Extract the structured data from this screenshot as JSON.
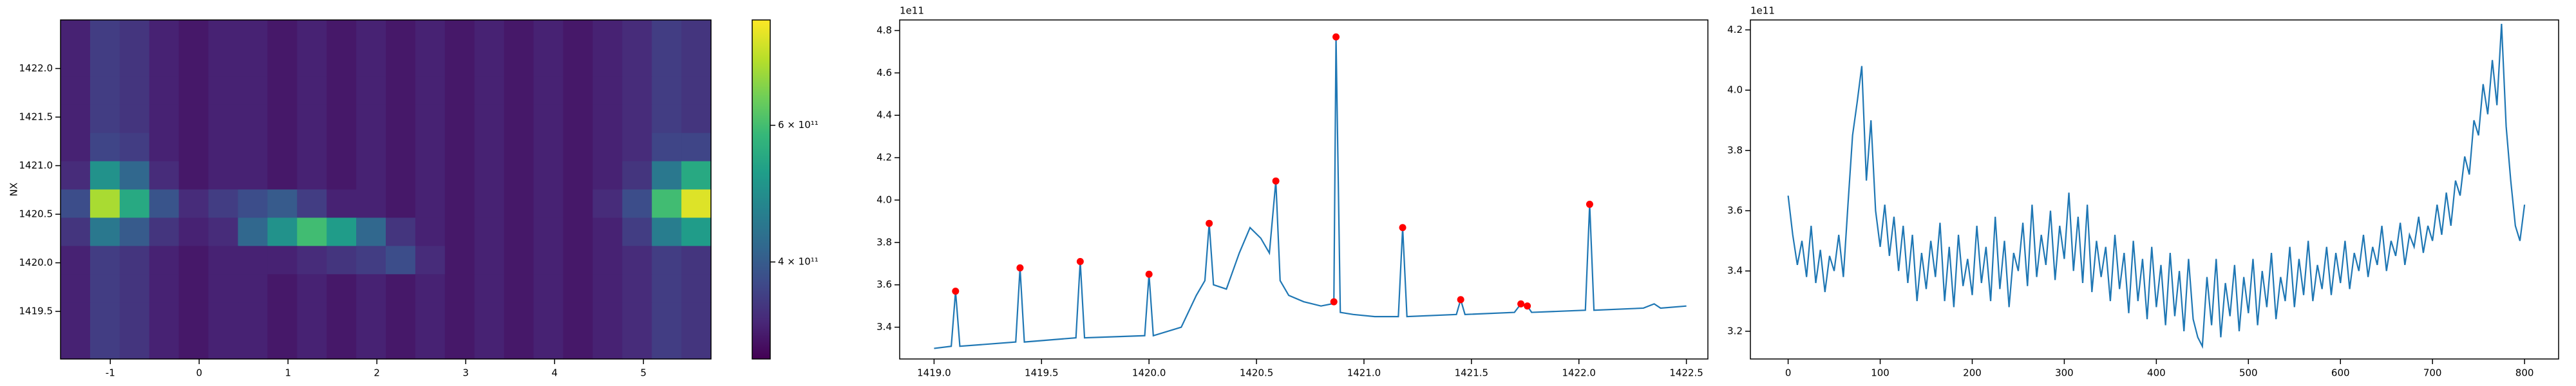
{
  "chart_data": [
    {
      "type": "heatmap",
      "ylabel": "NX",
      "xlim": [
        -1.56,
        5.76
      ],
      "ylim": [
        1419.01,
        1422.5
      ],
      "xticks": [
        -1,
        0,
        1,
        2,
        3,
        4,
        5
      ],
      "yticks": [
        1419.5,
        {
          "value": 1420.0,
          "label": "1420.0"
        },
        1420.5,
        {
          "value": 1421.0,
          "label": "1421.0"
        },
        1421.5,
        {
          "value": 1422.0,
          "label": "1422.0"
        }
      ],
      "z": [
        [
          330000000000.0,
          360000000000.0,
          350000000000.0,
          330000000000.0,
          320000000000.0,
          330000000000.0,
          330000000000.0,
          320000000000.0,
          330000000000.0,
          320000000000.0,
          330000000000.0,
          320000000000.0,
          330000000000.0,
          320000000000.0,
          330000000000.0,
          320000000000.0,
          330000000000.0,
          320000000000.0,
          330000000000.0,
          340000000000.0,
          360000000000.0,
          350000000000.0
        ],
        [
          330000000000.0,
          360000000000.0,
          350000000000.0,
          330000000000.0,
          320000000000.0,
          330000000000.0,
          330000000000.0,
          320000000000.0,
          330000000000.0,
          320000000000.0,
          330000000000.0,
          320000000000.0,
          330000000000.0,
          320000000000.0,
          330000000000.0,
          320000000000.0,
          330000000000.0,
          320000000000.0,
          330000000000.0,
          340000000000.0,
          360000000000.0,
          350000000000.0
        ],
        [
          330000000000.0,
          360000000000.0,
          350000000000.0,
          330000000000.0,
          320000000000.0,
          330000000000.0,
          330000000000.0,
          320000000000.0,
          330000000000.0,
          320000000000.0,
          330000000000.0,
          320000000000.0,
          330000000000.0,
          320000000000.0,
          330000000000.0,
          320000000000.0,
          330000000000.0,
          320000000000.0,
          330000000000.0,
          340000000000.0,
          360000000000.0,
          350000000000.0
        ],
        [
          330000000000.0,
          360000000000.0,
          350000000000.0,
          330000000000.0,
          320000000000.0,
          330000000000.0,
          330000000000.0,
          320000000000.0,
          330000000000.0,
          320000000000.0,
          330000000000.0,
          320000000000.0,
          330000000000.0,
          320000000000.0,
          330000000000.0,
          320000000000.0,
          330000000000.0,
          320000000000.0,
          330000000000.0,
          340000000000.0,
          360000000000.0,
          350000000000.0
        ],
        [
          330000000000.0,
          370000000000.0,
          360000000000.0,
          330000000000.0,
          320000000000.0,
          330000000000.0,
          330000000000.0,
          320000000000.0,
          330000000000.0,
          320000000000.0,
          330000000000.0,
          320000000000.0,
          330000000000.0,
          320000000000.0,
          330000000000.0,
          320000000000.0,
          330000000000.0,
          320000000000.0,
          330000000000.0,
          340000000000.0,
          370000000000.0,
          370000000000.0
        ],
        [
          340000000000.0,
          500000000000.0,
          420000000000.0,
          340000000000.0,
          320000000000.0,
          330000000000.0,
          330000000000.0,
          320000000000.0,
          330000000000.0,
          320000000000.0,
          330000000000.0,
          320000000000.0,
          330000000000.0,
          320000000000.0,
          330000000000.0,
          320000000000.0,
          330000000000.0,
          320000000000.0,
          330000000000.0,
          350000000000.0,
          450000000000.0,
          550000000000.0
        ],
        [
          380000000000.0,
          720000000000.0,
          550000000000.0,
          390000000000.0,
          340000000000.0,
          360000000000.0,
          380000000000.0,
          400000000000.0,
          360000000000.0,
          330000000000.0,
          330000000000.0,
          320000000000.0,
          330000000000.0,
          320000000000.0,
          330000000000.0,
          320000000000.0,
          330000000000.0,
          320000000000.0,
          340000000000.0,
          380000000000.0,
          600000000000.0,
          780000000000.0
        ],
        [
          350000000000.0,
          450000000000.0,
          400000000000.0,
          350000000000.0,
          330000000000.0,
          340000000000.0,
          420000000000.0,
          500000000000.0,
          600000000000.0,
          520000000000.0,
          420000000000.0,
          350000000000.0,
          330000000000.0,
          320000000000.0,
          330000000000.0,
          320000000000.0,
          330000000000.0,
          320000000000.0,
          330000000000.0,
          360000000000.0,
          460000000000.0,
          520000000000.0
        ],
        [
          330000000000.0,
          360000000000.0,
          350000000000.0,
          330000000000.0,
          320000000000.0,
          330000000000.0,
          330000000000.0,
          330000000000.0,
          340000000000.0,
          350000000000.0,
          360000000000.0,
          380000000000.0,
          340000000000.0,
          320000000000.0,
          330000000000.0,
          320000000000.0,
          330000000000.0,
          320000000000.0,
          330000000000.0,
          340000000000.0,
          360000000000.0,
          350000000000.0
        ],
        [
          330000000000.0,
          360000000000.0,
          350000000000.0,
          330000000000.0,
          320000000000.0,
          330000000000.0,
          330000000000.0,
          320000000000.0,
          330000000000.0,
          320000000000.0,
          330000000000.0,
          320000000000.0,
          330000000000.0,
          320000000000.0,
          330000000000.0,
          320000000000.0,
          330000000000.0,
          320000000000.0,
          330000000000.0,
          340000000000.0,
          360000000000.0,
          350000000000.0
        ],
        [
          330000000000.0,
          360000000000.0,
          350000000000.0,
          330000000000.0,
          320000000000.0,
          330000000000.0,
          330000000000.0,
          320000000000.0,
          330000000000.0,
          320000000000.0,
          330000000000.0,
          320000000000.0,
          330000000000.0,
          320000000000.0,
          330000000000.0,
          320000000000.0,
          330000000000.0,
          320000000000.0,
          330000000000.0,
          340000000000.0,
          360000000000.0,
          350000000000.0
        ],
        [
          330000000000.0,
          360000000000.0,
          350000000000.0,
          330000000000.0,
          320000000000.0,
          330000000000.0,
          330000000000.0,
          320000000000.0,
          330000000000.0,
          320000000000.0,
          330000000000.0,
          320000000000.0,
          330000000000.0,
          320000000000.0,
          330000000000.0,
          320000000000.0,
          330000000000.0,
          320000000000.0,
          330000000000.0,
          340000000000.0,
          360000000000.0,
          350000000000.0
        ]
      ],
      "colorbar": {
        "lim": [
          300000000000.0,
          820000000000.0
        ],
        "log": true,
        "ticks": [
          {
            "value": 400000000000,
            "label": "4 × 10¹¹"
          },
          {
            "value": 600000000000,
            "label": "6 × 10¹¹"
          }
        ]
      }
    },
    {
      "type": "line",
      "offset_label": "1e11",
      "color": "#1f77b4",
      "xlim": [
        1418.84,
        1422.6
      ],
      "ylim": [
        325000000000.0,
        485000000000.0
      ],
      "xticks": [
        {
          "value": 1419.0,
          "label": "1419.0"
        },
        1419.5,
        {
          "value": 1420.0,
          "label": "1420.0"
        },
        1420.5,
        {
          "value": 1421.0,
          "label": "1421.0"
        },
        1421.5,
        {
          "value": 1422.0,
          "label": "1422.0"
        },
        1422.5
      ],
      "yticks": [
        {
          "value": 340000000000.0,
          "label": "3.4"
        },
        {
          "value": 360000000000.0,
          "label": "3.6"
        },
        {
          "value": 380000000000.0,
          "label": "3.8"
        },
        {
          "value": 400000000000.0,
          "label": "4.0"
        },
        {
          "value": 420000000000.0,
          "label": "4.2"
        },
        {
          "value": 440000000000.0,
          "label": "4.4"
        },
        {
          "value": 460000000000.0,
          "label": "4.6"
        },
        {
          "value": 480000000000.0,
          "label": "4.8"
        }
      ],
      "x": [
        1419.0,
        1419.08,
        1419.1,
        1419.12,
        1419.38,
        1419.4,
        1419.42,
        1419.66,
        1419.68,
        1419.7,
        1419.98,
        1420.0,
        1420.02,
        1420.15,
        1420.22,
        1420.26,
        1420.28,
        1420.3,
        1420.36,
        1420.42,
        1420.47,
        1420.52,
        1420.56,
        1420.59,
        1420.61,
        1420.65,
        1420.72,
        1420.8,
        1420.85,
        1420.86,
        1420.87,
        1420.89,
        1420.95,
        1421.05,
        1421.16,
        1421.18,
        1421.2,
        1421.43,
        1421.45,
        1421.47,
        1421.7,
        1421.73,
        1421.76,
        1421.78,
        1422.03,
        1422.05,
        1422.07,
        1422.3,
        1422.35,
        1422.38,
        1422.5
      ],
      "values": [
        330000000000.0,
        331000000000.0,
        357000000000.0,
        331000000000.0,
        333000000000.0,
        368000000000.0,
        333000000000.0,
        335000000000.0,
        371000000000.0,
        335000000000.0,
        336000000000.0,
        365000000000.0,
        336000000000.0,
        340000000000.0,
        355000000000.0,
        362000000000.0,
        389000000000.0,
        360000000000.0,
        358000000000.0,
        375000000000.0,
        387000000000.0,
        382000000000.0,
        375000000000.0,
        409000000000.0,
        362000000000.0,
        355000000000.0,
        352000000000.0,
        350000000000.0,
        351000000000.0,
        352000000000.0,
        477000000000.0,
        347000000000.0,
        346000000000.0,
        345000000000.0,
        345000000000.0,
        387000000000.0,
        345000000000.0,
        346000000000.0,
        353000000000.0,
        346000000000.0,
        347000000000.0,
        351000000000.0,
        350000000000.0,
        347000000000.0,
        348000000000.0,
        398000000000.0,
        348000000000.0,
        349000000000.0,
        351000000000.0,
        349000000000.0,
        350000000000.0
      ],
      "markers": {
        "color": "#ff0000",
        "x": [
          1419.1,
          1419.4,
          1419.68,
          1420.0,
          1420.28,
          1420.59,
          1420.86,
          1420.87,
          1421.18,
          1421.45,
          1421.73,
          1421.76,
          1422.05
        ],
        "values": [
          357000000000.0,
          368000000000.0,
          371000000000.0,
          365000000000.0,
          389000000000.0,
          409000000000.0,
          352000000000.0,
          477000000000.0,
          387000000000.0,
          353000000000.0,
          351000000000.0,
          350000000000.0,
          398000000000.0
        ]
      }
    },
    {
      "type": "line",
      "offset_label": "1e11",
      "color": "#1f77b4",
      "xlim": [
        -41,
        837
      ],
      "ylim": [
        310800000000.0,
        423300000000.0
      ],
      "xticks": [
        0,
        100,
        200,
        300,
        400,
        500,
        600,
        700,
        800
      ],
      "yticks": [
        {
          "value": 320000000000.0,
          "label": "3.2"
        },
        {
          "value": 340000000000.0,
          "label": "3.4"
        },
        {
          "value": 360000000000.0,
          "label": "3.6"
        },
        {
          "value": 380000000000.0,
          "label": "3.8"
        },
        {
          "value": 400000000000.0,
          "label": "4.0"
        },
        {
          "value": 420000000000.0,
          "label": "4.2"
        }
      ],
      "x": [
        0,
        5,
        10,
        15,
        20,
        25,
        30,
        35,
        40,
        45,
        50,
        55,
        60,
        65,
        70,
        75,
        80,
        85,
        90,
        95,
        100,
        105,
        110,
        115,
        120,
        125,
        130,
        135,
        140,
        145,
        150,
        155,
        160,
        165,
        170,
        175,
        180,
        185,
        190,
        195,
        200,
        205,
        210,
        215,
        220,
        225,
        230,
        235,
        240,
        245,
        250,
        255,
        260,
        265,
        270,
        275,
        280,
        285,
        290,
        295,
        300,
        305,
        310,
        315,
        320,
        325,
        330,
        335,
        340,
        345,
        350,
        355,
        360,
        365,
        370,
        375,
        380,
        385,
        390,
        395,
        400,
        405,
        410,
        415,
        420,
        425,
        430,
        435,
        440,
        445,
        450,
        455,
        460,
        465,
        470,
        475,
        480,
        485,
        490,
        495,
        500,
        505,
        510,
        515,
        520,
        525,
        530,
        535,
        540,
        545,
        550,
        555,
        560,
        565,
        570,
        575,
        580,
        585,
        590,
        595,
        600,
        605,
        610,
        615,
        620,
        625,
        630,
        635,
        640,
        645,
        650,
        655,
        660,
        665,
        670,
        675,
        680,
        685,
        690,
        695,
        700,
        705,
        710,
        715,
        720,
        725,
        730,
        735,
        740,
        745,
        750,
        755,
        760,
        765,
        770,
        775,
        780,
        785,
        790,
        795,
        800
      ],
      "values": [
        365000000000.0,
        352000000000.0,
        342000000000.0,
        350000000000.0,
        338000000000.0,
        355000000000.0,
        336000000000.0,
        347000000000.0,
        333000000000.0,
        345000000000.0,
        340000000000.0,
        352000000000.0,
        338000000000.0,
        362000000000.0,
        385000000000.0,
        396000000000.0,
        408000000000.0,
        370000000000.0,
        390000000000.0,
        360000000000.0,
        348000000000.0,
        362000000000.0,
        345000000000.0,
        358000000000.0,
        340000000000.0,
        355000000000.0,
        336000000000.0,
        352000000000.0,
        330000000000.0,
        346000000000.0,
        334000000000.0,
        350000000000.0,
        338000000000.0,
        356000000000.0,
        330000000000.0,
        348000000000.0,
        328000000000.0,
        352000000000.0,
        335000000000.0,
        344000000000.0,
        332000000000.0,
        355000000000.0,
        336000000000.0,
        348000000000.0,
        330000000000.0,
        358000000000.0,
        334000000000.0,
        350000000000.0,
        328000000000.0,
        346000000000.0,
        340000000000.0,
        356000000000.0,
        335000000000.0,
        362000000000.0,
        338000000000.0,
        352000000000.0,
        342000000000.0,
        360000000000.0,
        337000000000.0,
        355000000000.0,
        344000000000.0,
        366000000000.0,
        340000000000.0,
        358000000000.0,
        336000000000.0,
        362000000000.0,
        333000000000.0,
        350000000000.0,
        338000000000.0,
        348000000000.0,
        330000000000.0,
        352000000000.0,
        334000000000.0,
        346000000000.0,
        326000000000.0,
        350000000000.0,
        330000000000.0,
        344000000000.0,
        324000000000.0,
        348000000000.0,
        328000000000.0,
        342000000000.0,
        322000000000.0,
        346000000000.0,
        325000000000.0,
        340000000000.0,
        320000000000.0,
        344000000000.0,
        324000000000.0,
        318000000000.0,
        315000000000.0,
        338000000000.0,
        322000000000.0,
        344000000000.0,
        318000000000.0,
        336000000000.0,
        325000000000.0,
        342000000000.0,
        320000000000.0,
        338000000000.0,
        326000000000.0,
        344000000000.0,
        322000000000.0,
        340000000000.0,
        328000000000.0,
        346000000000.0,
        324000000000.0,
        338000000000.0,
        330000000000.0,
        348000000000.0,
        328000000000.0,
        344000000000.0,
        332000000000.0,
        350000000000.0,
        330000000000.0,
        342000000000.0,
        334000000000.0,
        348000000000.0,
        332000000000.0,
        346000000000.0,
        336000000000.0,
        350000000000.0,
        334000000000.0,
        346000000000.0,
        340000000000.0,
        352000000000.0,
        338000000000.0,
        348000000000.0,
        342000000000.0,
        355000000000.0,
        340000000000.0,
        350000000000.0,
        345000000000.0,
        356000000000.0,
        342000000000.0,
        352000000000.0,
        348000000000.0,
        358000000000.0,
        346000000000.0,
        355000000000.0,
        350000000000.0,
        362000000000.0,
        352000000000.0,
        366000000000.0,
        355000000000.0,
        370000000000.0,
        365000000000.0,
        378000000000.0,
        372000000000.0,
        390000000000.0,
        385000000000.0,
        402000000000.0,
        392000000000.0,
        410000000000.0,
        395000000000.0,
        422000000000.0,
        388000000000.0,
        370000000000.0,
        355000000000.0,
        350000000000.0,
        362000000000.0
      ]
    }
  ]
}
